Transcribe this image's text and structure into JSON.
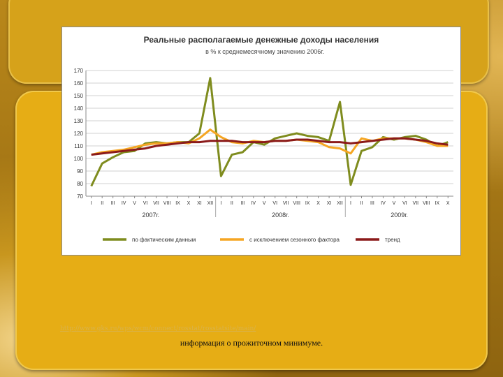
{
  "page": {
    "link_text": "http://www.gks.ru/wps/wcm/connect/rosstat/rosstatsite/main/",
    "caption": "информация о прожиточном минимуме."
  },
  "colors": {
    "actual": "#7f8c1e",
    "seasonal": "#f5a623",
    "trend": "#8b1a1a",
    "grid": "#d0d0d0"
  },
  "chart_data": {
    "type": "line",
    "title": "Реальные располагаемые денежные доходы населения",
    "subtitle": "в % к среднемесячному значению 2006г.",
    "ylim": [
      70,
      170
    ],
    "yticks": [
      70,
      80,
      90,
      100,
      110,
      120,
      130,
      140,
      150,
      160,
      170
    ],
    "grid": true,
    "legend_position": "bottom",
    "month_labels": [
      "I",
      "II",
      "III",
      "IV",
      "V",
      "VI",
      "VII",
      "VIII",
      "IX",
      "X",
      "XI",
      "XII",
      "I",
      "II",
      "III",
      "IV",
      "V",
      "VI",
      "VII",
      "VIII",
      "IX",
      "X",
      "XI",
      "XII",
      "I",
      "II",
      "III",
      "IV",
      "V",
      "VI",
      "VII",
      "VIII",
      "IX",
      "X"
    ],
    "year_labels": [
      {
        "label": "2007г.",
        "center_index": 5.5
      },
      {
        "label": "2008г.",
        "center_index": 17.5
      },
      {
        "label": "2009г.",
        "center_index": 28.5
      }
    ],
    "series": [
      {
        "name": "по фактическим данным",
        "color_key": "actual",
        "values": [
          78,
          96,
          101,
          105,
          106,
          112,
          113,
          112,
          113,
          113,
          120,
          164,
          86,
          103,
          105,
          113,
          111,
          116,
          118,
          120,
          118,
          117,
          114,
          145,
          79,
          106,
          109,
          117,
          115,
          117,
          118,
          115,
          110,
          113
        ]
      },
      {
        "name": "с исключением сезонного фактора",
        "color_key": "seasonal",
        "values": [
          103,
          105,
          106,
          107,
          109,
          111,
          112,
          112,
          113,
          112,
          116,
          123,
          117,
          113,
          112,
          114,
          113,
          114,
          114,
          115,
          114,
          113,
          109,
          108,
          104,
          116,
          114,
          116,
          116,
          116,
          115,
          113,
          110,
          110
        ]
      },
      {
        "name": "тренд",
        "color_key": "trend",
        "values": [
          103,
          104,
          105,
          106,
          107,
          108,
          110,
          111,
          112,
          113,
          113,
          114,
          114,
          114,
          113,
          113,
          113,
          114,
          114,
          115,
          115,
          114,
          113,
          113,
          112,
          113,
          114,
          115,
          116,
          116,
          115,
          114,
          112,
          111
        ]
      }
    ]
  }
}
